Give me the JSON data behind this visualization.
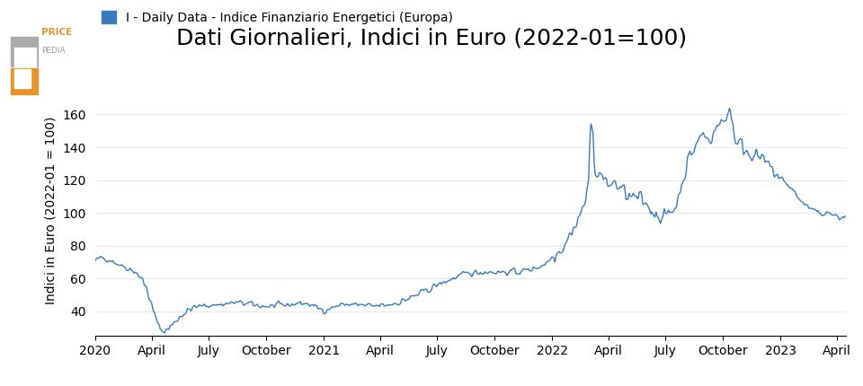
{
  "title": "Dati Giornalieri, Indici in Euro (2022-01=100)",
  "ylabel": "Indici in Euro (2022-01 = 100)",
  "legend_label": "I - Daily Data - Indice Finanziario Energetici (Europa)",
  "line_color": "#3a7abf",
  "background_color": "#ffffff",
  "yticks": [
    40,
    60,
    80,
    100,
    120,
    140,
    160
  ],
  "ylim_min": 25,
  "ylim_max": 178,
  "title_fontsize": 18,
  "label_fontsize": 10,
  "legend_fontsize": 10,
  "tick_fontsize": 10,
  "line_width": 1.0,
  "logo_orange": "#E8922A",
  "logo_gray": "#999999",
  "logo_dark_gray": "#666666"
}
